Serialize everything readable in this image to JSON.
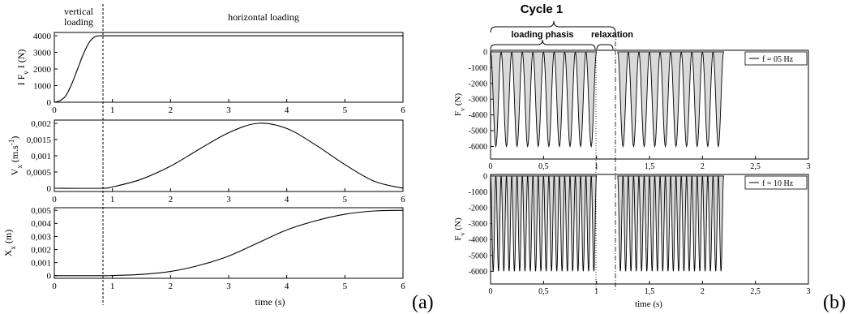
{
  "panel_labels": {
    "a": "(a)",
    "b": "(b)"
  },
  "panel_a": {
    "phase_labels": {
      "vertical_line1": "vertical",
      "vertical_line2": "loading",
      "horizontal": "horizontal loading"
    },
    "xlabel": "time (s)",
    "vline_x": 0.82
  },
  "panel_b": {
    "cycle_label": "Cycle 1",
    "loading_label": "loading phasis",
    "relaxation_label": "relaxation",
    "xlabel": "time (s)",
    "vline_dotted_x": 1.0,
    "vline_dashdot_x": 1.18
  },
  "chart_data": [
    {
      "id": "fv_abs",
      "type": "line",
      "ylabel": "I F_v I (N)",
      "xlim": [
        0,
        6
      ],
      "ylim": [
        0,
        4200
      ],
      "xticks": [
        0,
        1,
        2,
        3,
        4,
        5,
        6
      ],
      "xtick_labels": [
        "0",
        "1",
        "2",
        "3",
        "4",
        "5",
        "6"
      ],
      "yticks": [
        0,
        1000,
        2000,
        3000,
        4000
      ],
      "ytick_labels": [
        "0",
        "1000",
        "2000",
        "3000",
        "4000"
      ],
      "x": [
        0,
        0.1,
        0.2,
        0.3,
        0.4,
        0.5,
        0.6,
        0.7,
        0.8,
        1,
        2,
        3,
        4,
        5,
        6
      ],
      "y": [
        0,
        100,
        400,
        1100,
        2000,
        2900,
        3600,
        3950,
        4000,
        4000,
        4000,
        4000,
        4000,
        4000,
        4000
      ],
      "grid": false
    },
    {
      "id": "vx",
      "type": "line",
      "ylabel": "V_x (m.s^-1)",
      "xlim": [
        0,
        6
      ],
      "ylim": [
        -0.0001,
        0.0021
      ],
      "xticks": [
        0,
        1,
        2,
        3,
        4,
        5,
        6
      ],
      "xtick_labels": [
        "0",
        "1",
        "2",
        "3",
        "4",
        "5",
        "6"
      ],
      "yticks": [
        0,
        0.0005,
        0.001,
        0.0015,
        0.002
      ],
      "ytick_labels": [
        "0",
        "0,0005",
        "0,001",
        "0,0015",
        "0,002"
      ],
      "x": [
        0,
        0.8,
        1,
        1.5,
        2,
        2.5,
        3,
        3.5,
        4,
        4.5,
        5,
        5.5,
        6
      ],
      "y": [
        0,
        0,
        4e-05,
        0.00028,
        0.00068,
        0.00121,
        0.00171,
        0.002,
        0.00184,
        0.00133,
        0.00073,
        0.00022,
        0
      ],
      "grid": false
    },
    {
      "id": "xx",
      "type": "line",
      "ylabel": "X_x (m)",
      "xlim": [
        0,
        6
      ],
      "ylim": [
        -0.0002,
        0.0052
      ],
      "xticks": [
        0,
        1,
        2,
        3,
        4,
        5,
        6
      ],
      "xtick_labels": [
        "0",
        "1",
        "2",
        "3",
        "4",
        "5",
        "6"
      ],
      "yticks": [
        0,
        0.001,
        0.002,
        0.003,
        0.004,
        0.005
      ],
      "ytick_labels": [
        "0",
        "0,001",
        "0,002",
        "0,003",
        "0,004",
        "0,005"
      ],
      "x": [
        0,
        0.8,
        1,
        1.5,
        2,
        2.5,
        3,
        3.5,
        4,
        4.5,
        5,
        5.5,
        6
      ],
      "y": [
        0,
        0,
        1e-05,
        0.0001,
        0.00032,
        0.0008,
        0.0015,
        0.0025,
        0.0035,
        0.0042,
        0.0047,
        0.00495,
        0.005
      ],
      "grid": false
    },
    {
      "id": "fv_05hz",
      "type": "area",
      "ylabel": "F_v (N)",
      "xlim": [
        0,
        3
      ],
      "ylim": [
        -6800,
        100
      ],
      "xticks": [
        0,
        0.5,
        1,
        1.5,
        2,
        2.5,
        3
      ],
      "xtick_labels": [
        "0",
        "0,5",
        "1",
        "1,5",
        "2",
        "2,5",
        "3"
      ],
      "yticks": [
        0,
        -1000,
        -2000,
        -3000,
        -4000,
        -5000,
        -6000
      ],
      "ytick_labels": [
        "0",
        "-1000",
        "-2000",
        "-3000",
        "-4000",
        "-5000",
        "-6000"
      ],
      "series": [
        {
          "name": "f = 05 Hz",
          "shape": "periodic_pulses",
          "period": 0.1,
          "amplitude": -6000,
          "on_intervals": [
            [
              0,
              1.0
            ],
            [
              1.2,
              2.2
            ]
          ]
        }
      ],
      "legend": "top-right",
      "grid": false
    },
    {
      "id": "fv_10hz",
      "type": "area",
      "ylabel": "F_v (N)",
      "xlim": [
        0,
        3
      ],
      "ylim": [
        -6800,
        100
      ],
      "xticks": [
        0,
        0.5,
        1,
        1.5,
        2,
        2.5,
        3
      ],
      "xtick_labels": [
        "0",
        "0,5",
        "1",
        "1,5",
        "2",
        "2,5",
        "3"
      ],
      "yticks": [
        0,
        -1000,
        -2000,
        -3000,
        -4000,
        -5000,
        -6000
      ],
      "ytick_labels": [
        "0",
        "-1000",
        "-2000",
        "-3000",
        "-4000",
        "-5000",
        "-6000"
      ],
      "series": [
        {
          "name": "f = 10 Hz",
          "shape": "periodic_pulses",
          "period": 0.05,
          "amplitude": -6000,
          "on_intervals": [
            [
              0,
              1.0
            ],
            [
              1.2,
              2.2
            ]
          ]
        }
      ],
      "legend": "top-right",
      "grid": false
    }
  ]
}
